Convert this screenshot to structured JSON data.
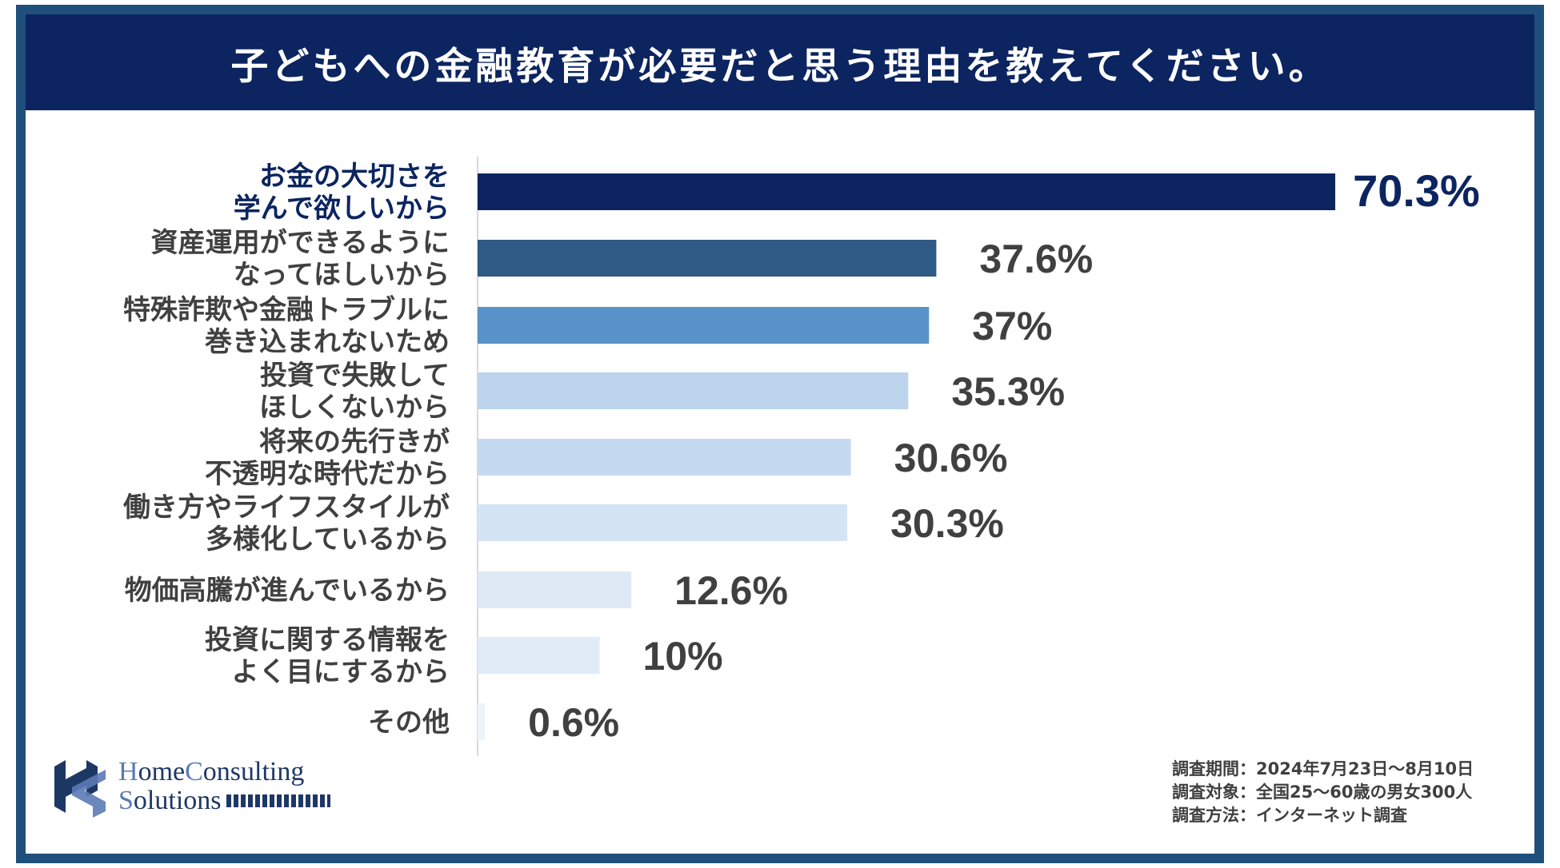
{
  "title": "子どもへの金融教育が必要だと思う理由を教えてください。",
  "chart_data": {
    "type": "bar",
    "orientation": "horizontal",
    "title": "子どもへの金融教育が必要だと思う理由を教えてください。",
    "categories": [
      [
        "お金の大切さを",
        "学んで欲しいから"
      ],
      [
        "資産運用ができるように",
        "なってほしいから"
      ],
      [
        "特殊詐欺や金融トラブルに",
        "巻き込まれないため"
      ],
      [
        "投資で失敗して",
        "ほしくないから"
      ],
      [
        "将来の先行きが",
        "不透明な時代だから"
      ],
      [
        "働き方やライフスタイルが",
        "多様化しているから"
      ],
      [
        "物価高騰が進んでいるから"
      ],
      [
        "投資に関する情報を",
        "よく目にするから"
      ],
      [
        "その他"
      ]
    ],
    "values": [
      70.3,
      37.6,
      37,
      35.3,
      30.6,
      30.3,
      12.6,
      10,
      0.6
    ],
    "value_labels": [
      "70.3%",
      "37.6%",
      "37%",
      "35.3%",
      "30.6%",
      "30.3%",
      "12.6%",
      "10%",
      "0.6%"
    ],
    "bar_colors": [
      "#0c2560",
      "#2f5a86",
      "#5892c8",
      "#bcd4ec",
      "#c5daf0",
      "#d5e4f4",
      "#dfe9f6",
      "#e1eaf7",
      "#eef3fb"
    ],
    "highlight_color": "#0c2560",
    "xlim": [
      0,
      80
    ],
    "grid": false,
    "legend": "none"
  },
  "logo": {
    "line1_cap1": "H",
    "line1_rest1": "ome",
    "line1_cap2": "C",
    "line1_rest2": "onsulting",
    "line2_cap": "S",
    "line2_rest": "olutions"
  },
  "survey": {
    "period": "調査期間：2024年7月23日～8月10日",
    "target": "調査対象：全国25～60歳の男女300人",
    "method": "調査方法：インターネット調査"
  }
}
